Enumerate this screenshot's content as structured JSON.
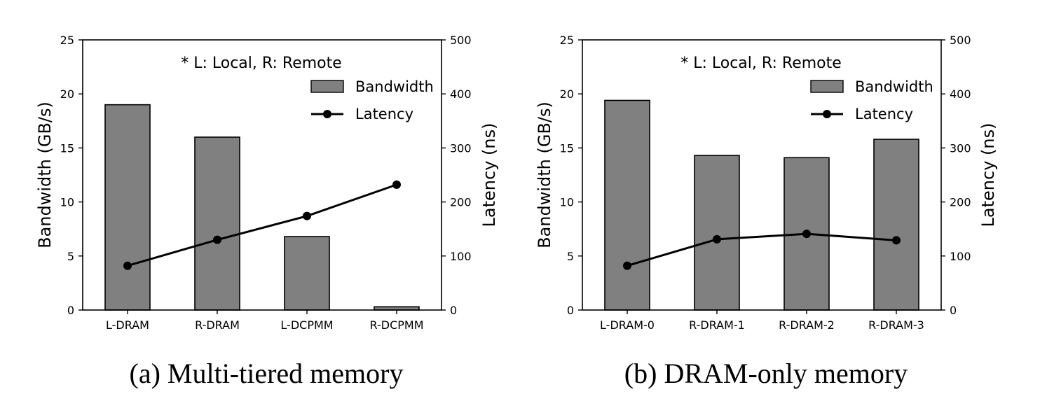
{
  "chart_data": [
    {
      "type": "bar",
      "caption": "(a) Multi-tiered memory",
      "annotation": "* L: Local, R: Remote",
      "categories": [
        "L-DRAM",
        "R-DRAM",
        "L-DCPMM",
        "R-DCPMM"
      ],
      "series": [
        {
          "name": "Bandwidth",
          "type": "bar",
          "axis": "left",
          "color": "#808080",
          "values": [
            19.0,
            16.0,
            6.8,
            0.3
          ]
        },
        {
          "name": "Latency",
          "type": "line",
          "axis": "right",
          "color": "#000000",
          "values": [
            82,
            130,
            174,
            232
          ]
        }
      ],
      "ylabel": "Bandwidth (GB/s)",
      "ylabel_right": "Latency (ns)",
      "ylim": [
        0,
        25
      ],
      "ylim_right": [
        0,
        500
      ],
      "yticks": [
        "0",
        "5",
        "10",
        "15",
        "20",
        "25"
      ],
      "yticks_right": [
        "0",
        "100",
        "200",
        "300",
        "400",
        "500"
      ],
      "grid": false,
      "legend": "top-right"
    },
    {
      "type": "bar",
      "caption": "(b) DRAM-only memory",
      "annotation": "* L: Local, R: Remote",
      "categories": [
        "L-DRAM-0",
        "R-DRAM-1",
        "R-DRAM-2",
        "R-DRAM-3"
      ],
      "series": [
        {
          "name": "Bandwidth",
          "type": "bar",
          "axis": "left",
          "color": "#808080",
          "values": [
            19.4,
            14.3,
            14.1,
            15.8
          ]
        },
        {
          "name": "Latency",
          "type": "line",
          "axis": "right",
          "color": "#000000",
          "values": [
            82,
            131,
            141,
            129
          ]
        }
      ],
      "ylabel": "Bandwidth (GB/s)",
      "ylabel_right": "Latency (ns)",
      "ylim": [
        0,
        25
      ],
      "ylim_right": [
        0,
        500
      ],
      "yticks": [
        "0",
        "5",
        "10",
        "15",
        "20",
        "25"
      ],
      "yticks_right": [
        "0",
        "100",
        "200",
        "300",
        "400",
        "500"
      ],
      "grid": false,
      "legend": "top-right"
    }
  ]
}
